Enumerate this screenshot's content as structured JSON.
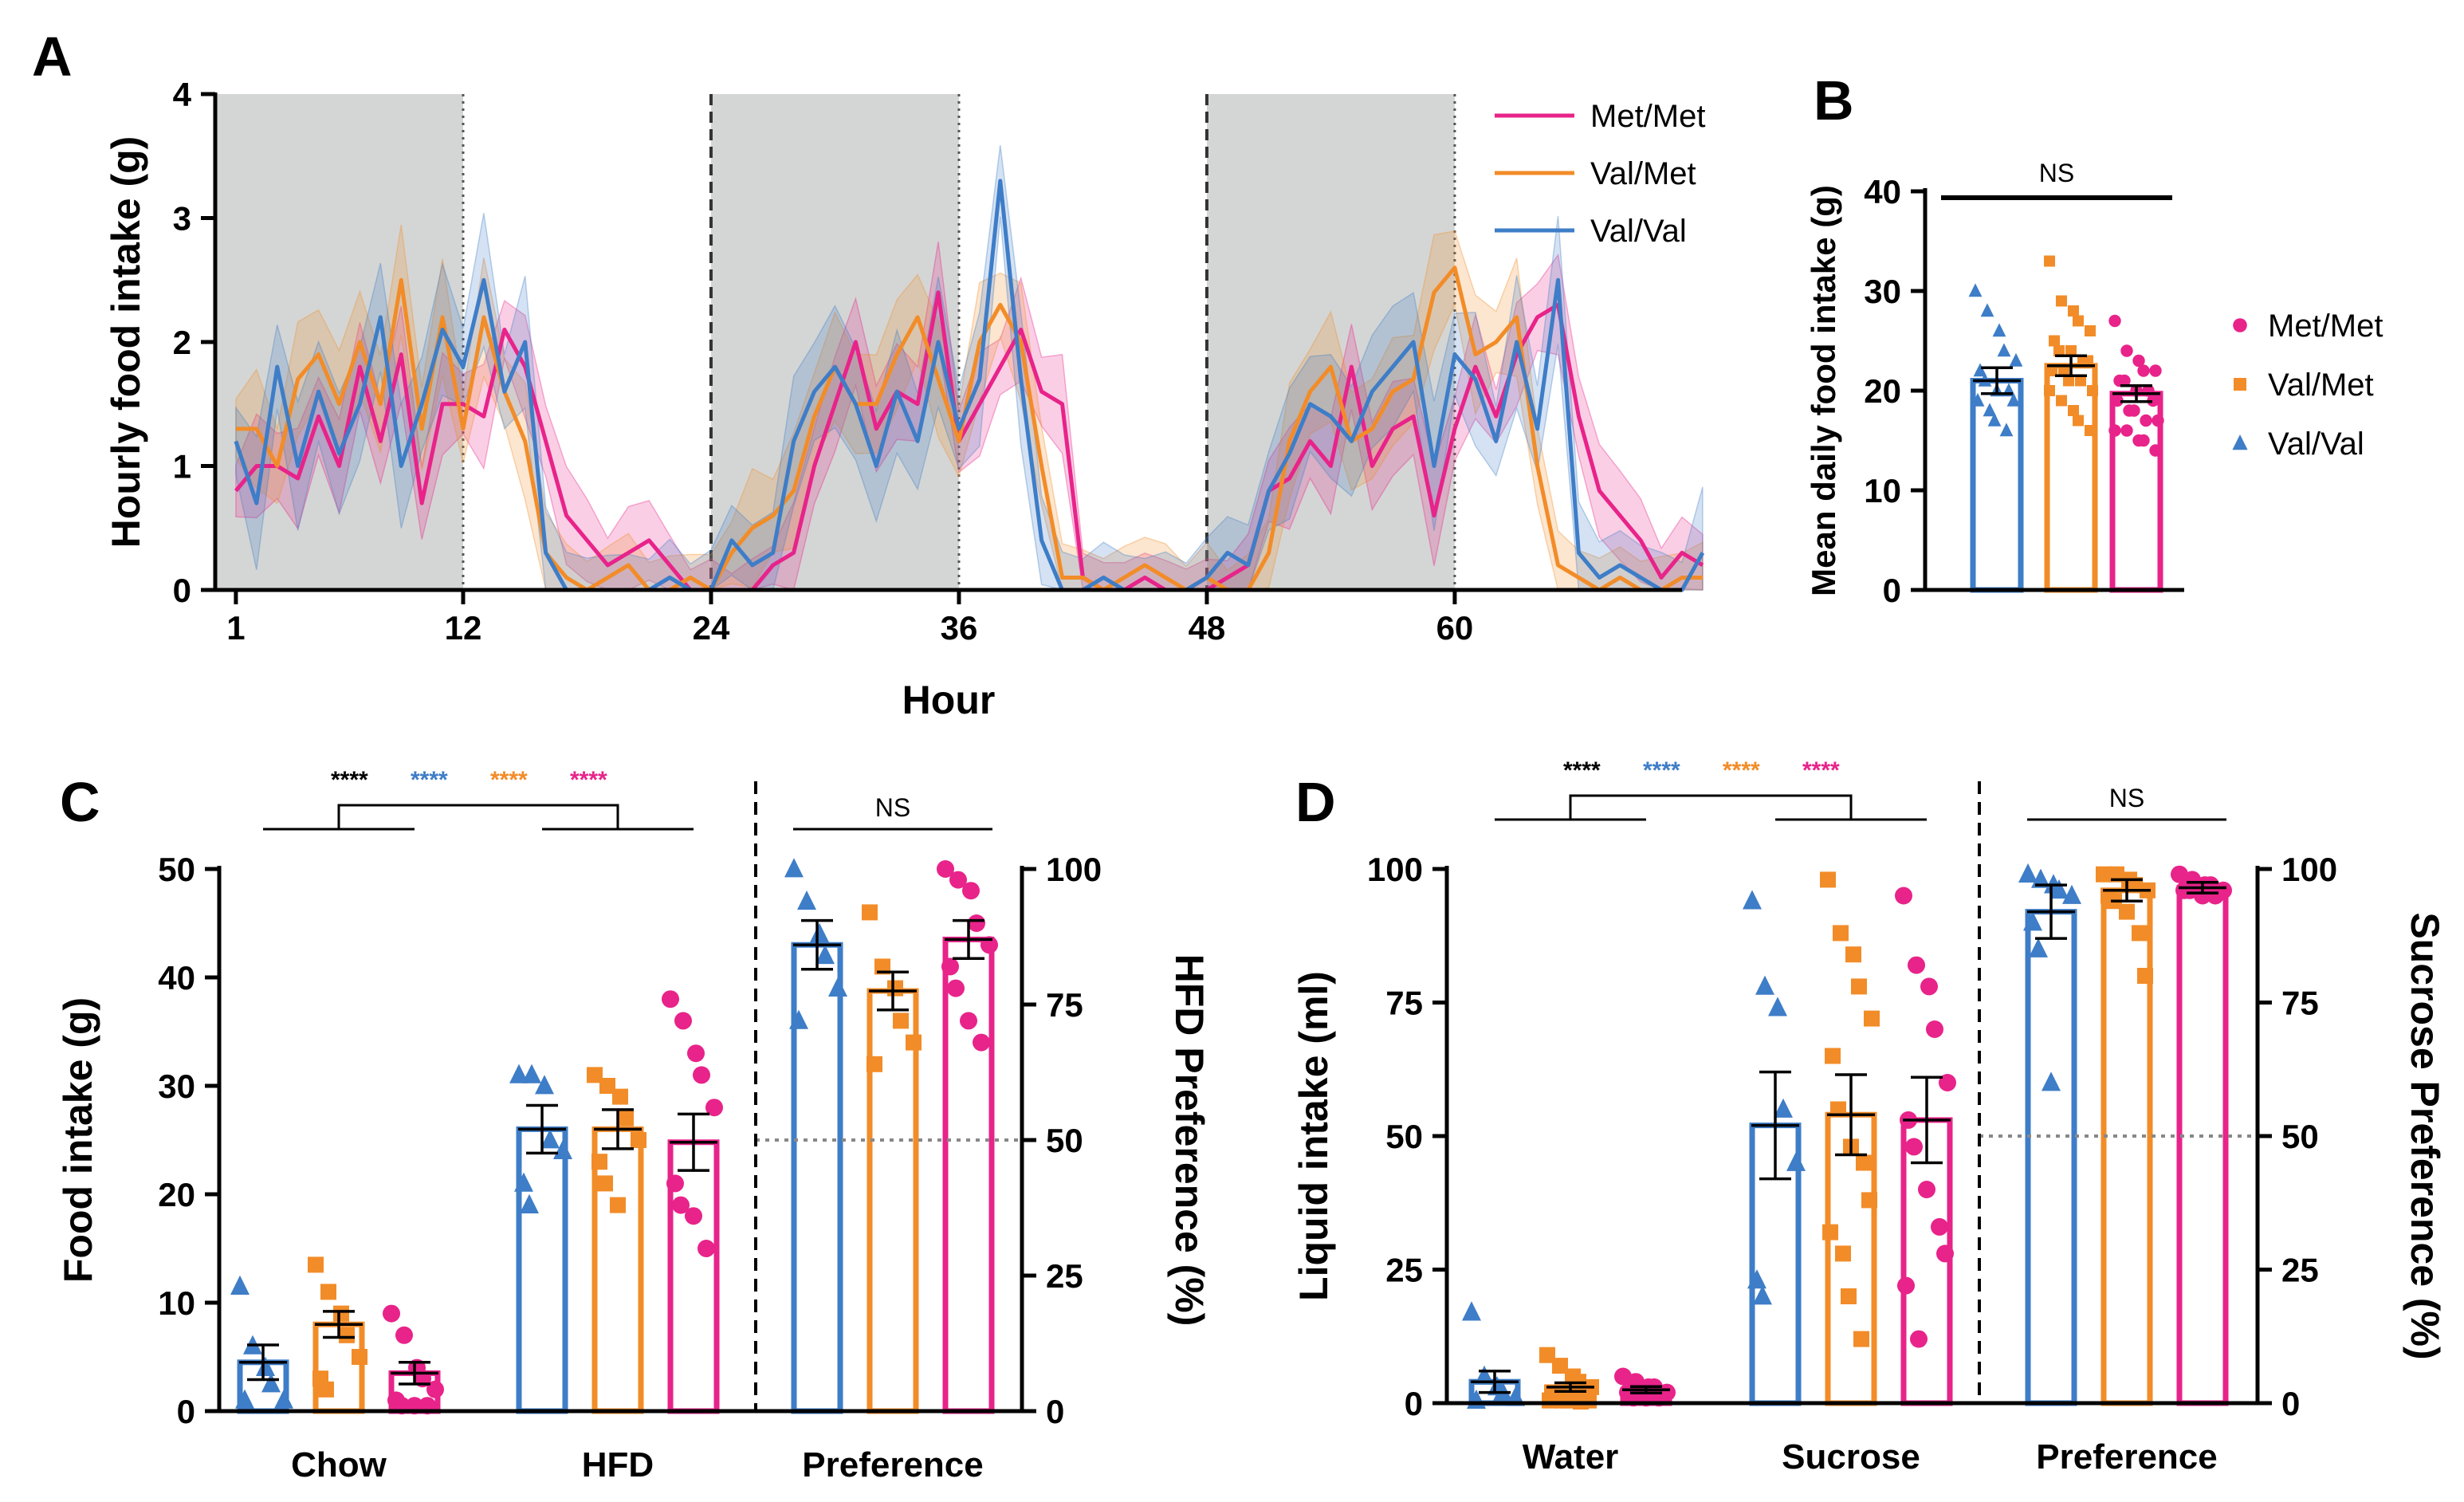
{
  "colors": {
    "met_met": "#e8238a",
    "val_met": "#f28c28",
    "val_val": "#3e7dc7",
    "dark_shade": "#d4d6d5",
    "black": "#000000",
    "ref_line": "#888888"
  },
  "panel_labels": {
    "a": "A",
    "b": "B",
    "c": "C",
    "d": "D"
  },
  "legend": [
    "Met/Met",
    "Val/Met",
    "Val/Val"
  ],
  "chart_data": [
    {
      "id": "A",
      "type": "line",
      "title": "",
      "xlabel": "Hour",
      "ylabel": "Hourly food intake (g)",
      "xlim": [
        0,
        71
      ],
      "ylim": [
        0,
        4
      ],
      "xticks": [
        "1",
        "12",
        "24",
        "36",
        "48",
        "60"
      ],
      "xtick_values": [
        1,
        12,
        24,
        36,
        48,
        60
      ],
      "yticks": [
        "0",
        "1",
        "2",
        "3",
        "4"
      ],
      "ytick_values": [
        0,
        1,
        2,
        3,
        4
      ],
      "dark_phases": [
        [
          0,
          12
        ],
        [
          24,
          36
        ],
        [
          48,
          60
        ]
      ],
      "x_start": 1,
      "series": [
        {
          "name": "Met/Met",
          "color_key": "met_met",
          "values": [
            0.8,
            1.0,
            1.0,
            0.9,
            1.4,
            1.0,
            1.8,
            1.2,
            1.9,
            0.7,
            1.5,
            1.5,
            1.4,
            2.1,
            1.8,
            1.2,
            0.6,
            0.4,
            0.2,
            0.3,
            0.4,
            0.2,
            0.0,
            0.0,
            0.0,
            0.0,
            0.2,
            0.3,
            1.0,
            1.5,
            2.0,
            1.3,
            1.6,
            1.5,
            2.4,
            1.2,
            1.5,
            1.8,
            2.1,
            1.6,
            1.5,
            0.1,
            0.0,
            0.0,
            0.1,
            0.0,
            0.0,
            0.0,
            0.1,
            0.2,
            0.8,
            0.9,
            1.2,
            1.0,
            1.8,
            1.0,
            1.3,
            1.4,
            0.6,
            1.3,
            1.8,
            1.4,
            1.9,
            2.2,
            2.3,
            1.4,
            0.8,
            0.6,
            0.4,
            0.1,
            0.3,
            0.2
          ],
          "spread": 0.35
        },
        {
          "name": "Val/Met",
          "color_key": "val_met",
          "values": [
            1.3,
            1.3,
            1.0,
            1.7,
            1.9,
            1.5,
            2.0,
            1.5,
            2.5,
            1.3,
            2.2,
            1.3,
            2.2,
            1.6,
            1.2,
            0.3,
            0.1,
            0.0,
            0.1,
            0.2,
            0.0,
            0.0,
            0.1,
            0.0,
            0.3,
            0.5,
            0.6,
            0.8,
            1.4,
            1.8,
            1.5,
            1.5,
            1.9,
            2.2,
            1.7,
            1.2,
            2.0,
            2.3,
            2.0,
            1.0,
            0.1,
            0.1,
            0.0,
            0.1,
            0.2,
            0.1,
            0.0,
            0.1,
            0.0,
            0.0,
            0.3,
            1.2,
            1.6,
            1.8,
            1.2,
            1.3,
            1.6,
            1.7,
            2.4,
            2.6,
            1.9,
            2.0,
            2.2,
            1.0,
            0.2,
            0.1,
            0.0,
            0.1,
            0.0,
            0.0,
            0.1,
            0.1
          ],
          "spread": 0.4
        },
        {
          "name": "Val/Val",
          "color_key": "val_val",
          "values": [
            1.2,
            0.7,
            1.8,
            1.0,
            1.6,
            1.1,
            1.5,
            2.2,
            1.0,
            1.5,
            2.1,
            1.8,
            2.5,
            1.6,
            2.0,
            0.3,
            0.0,
            0.0,
            0.0,
            0.0,
            0.0,
            0.1,
            0.0,
            0.0,
            0.4,
            0.2,
            0.3,
            1.2,
            1.6,
            1.8,
            1.5,
            1.0,
            1.6,
            1.2,
            2.0,
            1.3,
            1.7,
            3.3,
            1.7,
            0.4,
            0.0,
            0.0,
            0.1,
            0.0,
            0.0,
            0.0,
            0.0,
            0.1,
            0.3,
            0.2,
            0.8,
            1.1,
            1.5,
            1.4,
            1.2,
            1.6,
            1.8,
            2.0,
            1.0,
            1.9,
            1.7,
            1.2,
            2.0,
            1.3,
            2.5,
            0.3,
            0.1,
            0.2,
            0.1,
            0.0,
            0.0,
            0.3
          ],
          "spread": 0.45
        }
      ]
    },
    {
      "id": "B",
      "type": "bar",
      "title": "",
      "xlabel": "",
      "ylabel": "Mean daily food intake (g)",
      "ylim": [
        0,
        40
      ],
      "yticks": [
        "0",
        "10",
        "20",
        "30",
        "40"
      ],
      "ytick_values": [
        0,
        10,
        20,
        30,
        40
      ],
      "groups": [
        "Val/Val",
        "Val/Met",
        "Met/Met"
      ],
      "means": [
        21,
        22.5,
        19.7
      ],
      "sem": [
        1.3,
        1.0,
        0.8
      ],
      "significance": "NS",
      "points": [
        [
          30,
          28,
          26,
          24,
          23,
          22,
          21,
          20,
          20,
          19,
          19,
          18,
          17,
          16
        ],
        [
          33,
          29,
          28,
          27,
          26,
          25,
          24,
          24,
          23,
          23,
          22,
          22,
          21,
          21,
          20,
          20,
          19,
          18,
          17,
          16
        ],
        [
          27,
          24,
          23,
          22,
          22,
          21,
          21,
          20,
          20,
          19,
          19,
          18,
          18,
          17,
          17,
          16,
          16,
          15,
          15,
          14
        ]
      ]
    },
    {
      "id": "C",
      "type": "bar",
      "title": "",
      "xlabel": "",
      "ylabel": "Food intake (g)",
      "ylabel_right": "HFD Preference (%)",
      "ylim": [
        0,
        50
      ],
      "ylim_right": [
        0,
        100
      ],
      "yticks": [
        "0",
        "10",
        "20",
        "30",
        "40",
        "50"
      ],
      "ytick_values": [
        0,
        10,
        20,
        30,
        40,
        50
      ],
      "yticks_right": [
        "0",
        "25",
        "50",
        "75",
        "100"
      ],
      "ytick_values_right": [
        0,
        25,
        50,
        75,
        100
      ],
      "categories": [
        "Chow",
        "HFD",
        "Preference"
      ],
      "groups": [
        "Val/Val",
        "Val/Met",
        "Met/Met"
      ],
      "significance_left": [
        "****",
        "****",
        "****",
        "****"
      ],
      "significance_right": "NS",
      "reference_line_right": 50,
      "series": [
        {
          "name": "Chow",
          "means": [
            4.5,
            8.0,
            3.5
          ],
          "sem": [
            1.6,
            1.2,
            1.0
          ],
          "points": [
            [
              11.5,
              6,
              4,
              2.5,
              1,
              1
            ],
            [
              13.5,
              11,
              9,
              7,
              5,
              3,
              2
            ],
            [
              9,
              7,
              4,
              3,
              2,
              1,
              0.5,
              0.5,
              0.5
            ]
          ]
        },
        {
          "name": "HFD",
          "means": [
            26,
            26,
            24.8
          ],
          "sem": [
            2.2,
            1.8,
            2.6
          ],
          "points": [
            [
              31,
              31,
              30,
              25,
              24,
              21,
              19
            ],
            [
              31,
              30,
              29,
              27,
              25,
              23,
              21,
              19
            ],
            [
              38,
              36,
              33,
              31,
              28,
              21,
              19,
              18,
              15
            ]
          ]
        },
        {
          "name": "Preference",
          "means": [
            86,
            77.5,
            87
          ],
          "sem": [
            4.5,
            3.5,
            3.5
          ],
          "right_axis": true,
          "points": [
            [
              100,
              94,
              88,
              84,
              78,
              72
            ],
            [
              92,
              82,
              78,
              72,
              68,
              64
            ],
            [
              100,
              98,
              96,
              90,
              86,
              82,
              78,
              72,
              68
            ]
          ]
        }
      ]
    },
    {
      "id": "D",
      "type": "bar",
      "title": "",
      "xlabel": "",
      "ylabel": "Liquid intake (ml)",
      "ylabel_right": "Sucrose Preference (%)",
      "ylim": [
        0,
        100
      ],
      "ylim_right": [
        0,
        100
      ],
      "yticks": [
        "0",
        "25",
        "50",
        "75",
        "100"
      ],
      "ytick_values": [
        0,
        25,
        50,
        75,
        100
      ],
      "yticks_right": [
        "0",
        "25",
        "50",
        "75",
        "100"
      ],
      "ytick_values_right": [
        0,
        25,
        50,
        75,
        100
      ],
      "categories": [
        "Water",
        "Sucrose",
        "Preference"
      ],
      "groups": [
        "Val/Val",
        "Val/Met",
        "Met/Met"
      ],
      "significance_left": [
        "****",
        "****",
        "****",
        "****"
      ],
      "significance_right": "NS",
      "reference_line_right": 50,
      "series": [
        {
          "name": "Water",
          "means": [
            4,
            3,
            2.5
          ],
          "sem": [
            2,
            0.8,
            0.6
          ],
          "points": [
            [
              17,
              5,
              3,
              2,
              1,
              0.5
            ],
            [
              9,
              7,
              5,
              4,
              3,
              2,
              2,
              1,
              1,
              0.5,
              0.5,
              0.5,
              0.5,
              0.3
            ],
            [
              5,
              4,
              3,
              3,
              2,
              2,
              1,
              1,
              1
            ]
          ]
        },
        {
          "name": "Sucrose",
          "means": [
            52,
            54,
            53
          ],
          "sem": [
            10,
            7.5,
            8
          ],
          "points": [
            [
              94,
              78,
              74,
              55,
              45,
              23,
              20
            ],
            [
              98,
              88,
              84,
              78,
              72,
              65,
              55,
              48,
              45,
              38,
              32,
              28,
              20,
              12
            ],
            [
              95,
              82,
              78,
              70,
              60,
              53,
              48,
              40,
              33,
              28,
              22,
              12
            ]
          ]
        },
        {
          "name": "Preference",
          "means": [
            92,
            96,
            96.5
          ],
          "sem": [
            5,
            2,
            1
          ],
          "right_axis": true,
          "points": [
            [
              99,
              98,
              97,
              96,
              95,
              90,
              85,
              60
            ],
            [
              99,
              99,
              98,
              97,
              96,
              95,
              94,
              92,
              88,
              80
            ],
            [
              99,
              98,
              97,
              97,
              96,
              96,
              96,
              95,
              95
            ]
          ]
        }
      ]
    }
  ]
}
